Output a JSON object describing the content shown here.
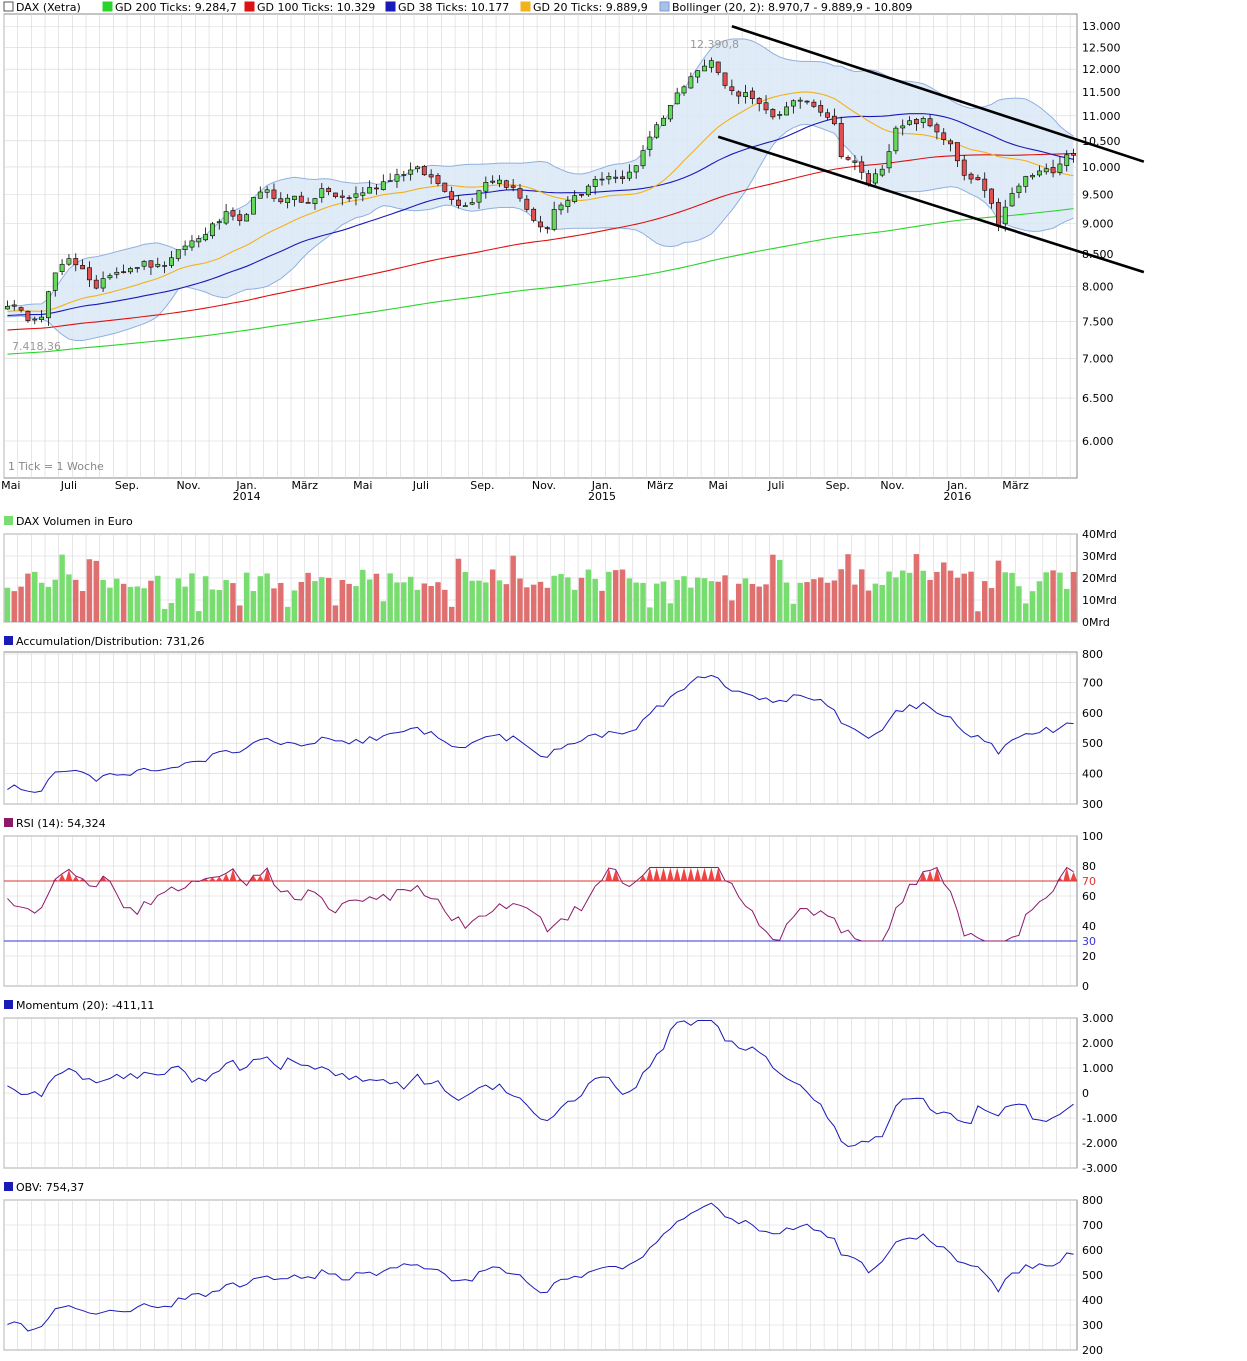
{
  "colors": {
    "grid": "#d6d6d6",
    "frame": "#888888",
    "up": "#64d85a",
    "down": "#e05050",
    "gd200": "#2bd42b",
    "gd100": "#dd1111",
    "gd38": "#1a1ab8",
    "gd20": "#f2b21a",
    "boll_fill": "#dbe7f7",
    "boll_line": "#8fb0df",
    "vol_up": "#77dd6e",
    "vol_down": "#e07070",
    "ind_line": "#1a1ab8",
    "rsi_line": "#8b1a6b",
    "rsi_fill": "#ee4444",
    "rsi70": "#dd3333",
    "rsi30": "#3333dd"
  },
  "main": {
    "legend": [
      {
        "label": "DAX (Xetra)",
        "swatch": "#ffffff",
        "border": "#555555"
      },
      {
        "label": "GD 200 Ticks: 9.284,7",
        "swatch": "#2bd42b",
        "border": "#2bd42b"
      },
      {
        "label": "GD 100 Ticks: 10.329",
        "swatch": "#dd1111",
        "border": "#dd1111"
      },
      {
        "label": "GD 38 Ticks: 10.177",
        "swatch": "#1a1ab8",
        "border": "#1a1ab8"
      },
      {
        "label": "GD 20 Ticks: 9.889,9",
        "swatch": "#f2b21a",
        "border": "#f2b21a"
      },
      {
        "label": "Bollinger (20, 2): 8.970,7 - 9.889,9 - 10.809",
        "swatch": "#a8c1e8",
        "border": "#7a9ed6"
      }
    ],
    "y_ticks": [
      {
        "v": 13000,
        "label": "13.000"
      },
      {
        "v": 12500,
        "label": "12.500"
      },
      {
        "v": 12000,
        "label": "12.000"
      },
      {
        "v": 11500,
        "label": "11.500"
      },
      {
        "v": 11000,
        "label": "11.000"
      },
      {
        "v": 10500,
        "label": "10.500"
      },
      {
        "v": 10000,
        "label": "10.000"
      },
      {
        "v": 9500,
        "label": "9.500"
      },
      {
        "v": 9000,
        "label": "9.000"
      },
      {
        "v": 8500,
        "label": "8.500"
      },
      {
        "v": 8000,
        "label": "8.000"
      },
      {
        "v": 7500,
        "label": "7.500"
      },
      {
        "v": 7000,
        "label": "7.000"
      },
      {
        "v": 6500,
        "label": "6.500"
      },
      {
        "v": 6000,
        "label": "6.000"
      }
    ],
    "x_ticks": [
      {
        "w": 1,
        "label": "Mai",
        "year": ""
      },
      {
        "w": 9.5,
        "label": "Juli",
        "year": ""
      },
      {
        "w": 18,
        "label": "Sep.",
        "year": ""
      },
      {
        "w": 27,
        "label": "Nov.",
        "year": ""
      },
      {
        "w": 35.5,
        "label": "Jan.",
        "year": "2014"
      },
      {
        "w": 44,
        "label": "März",
        "year": ""
      },
      {
        "w": 52.5,
        "label": "Mai",
        "year": ""
      },
      {
        "w": 61,
        "label": "Juli",
        "year": ""
      },
      {
        "w": 70,
        "label": "Sep.",
        "year": ""
      },
      {
        "w": 79,
        "label": "Nov.",
        "year": ""
      },
      {
        "w": 87.5,
        "label": "Jan.",
        "year": "2015"
      },
      {
        "w": 96,
        "label": "März",
        "year": ""
      },
      {
        "w": 104.5,
        "label": "Mai",
        "year": ""
      },
      {
        "w": 113,
        "label": "Juli",
        "year": ""
      },
      {
        "w": 122,
        "label": "Sep.",
        "year": ""
      },
      {
        "w": 130,
        "label": "Nov.",
        "year": ""
      },
      {
        "w": 139.5,
        "label": "Jan.",
        "year": "2016"
      },
      {
        "w": 148,
        "label": "März",
        "year": ""
      }
    ],
    "annotation_high": "12.390,8",
    "annotation_low": "7.418,36",
    "tick_note": "1 Tick = 1 Woche"
  },
  "volume": {
    "legend": "DAX Volumen in Euro",
    "swatch": "#77dd6e",
    "y_ticks": [
      {
        "v": 40,
        "label": "40Mrd"
      },
      {
        "v": 30,
        "label": "30Mrd"
      },
      {
        "v": 20,
        "label": "20Mrd"
      },
      {
        "v": 10,
        "label": "10Mrd"
      },
      {
        "v": 0,
        "label": "0Mrd"
      }
    ]
  },
  "ad": {
    "legend": "Accumulation/Distribution: 731,26",
    "swatch": "#1a1ab8",
    "y_ticks": [
      {
        "v": 800,
        "label": "800"
      },
      {
        "v": 700,
        "label": "700"
      },
      {
        "v": 600,
        "label": "600"
      },
      {
        "v": 500,
        "label": "500"
      },
      {
        "v": 400,
        "label": "400"
      },
      {
        "v": 300,
        "label": "300"
      }
    ]
  },
  "rsi": {
    "legend": "RSI (14): 54,324",
    "swatch": "#8b1a6b",
    "y_ticks": [
      {
        "v": 100,
        "label": "100"
      },
      {
        "v": 80,
        "label": "80"
      },
      {
        "v": 60,
        "label": "60"
      },
      {
        "v": 40,
        "label": "40"
      },
      {
        "v": 20,
        "label": "20"
      },
      {
        "v": 0,
        "label": "0"
      }
    ],
    "level_high": 70,
    "level_high_label": "70",
    "level_low": 30,
    "level_low_label": "30"
  },
  "momentum": {
    "legend": "Momentum (20): -411,11",
    "swatch": "#1a1ab8",
    "y_ticks": [
      {
        "v": 3000,
        "label": "3.000"
      },
      {
        "v": 2000,
        "label": "2.000"
      },
      {
        "v": 1000,
        "label": "1.000"
      },
      {
        "v": 0,
        "label": "0"
      },
      {
        "v": -1000,
        "label": "-1.000"
      },
      {
        "v": -2000,
        "label": "-2.000"
      },
      {
        "v": -3000,
        "label": "-3.000"
      }
    ]
  },
  "obv": {
    "legend": "OBV: 754,37",
    "swatch": "#1a1ab8",
    "y_ticks": [
      {
        "v": 800,
        "label": "800"
      },
      {
        "v": 700,
        "label": "700"
      },
      {
        "v": 600,
        "label": "600"
      },
      {
        "v": 500,
        "label": "500"
      },
      {
        "v": 400,
        "label": "400"
      },
      {
        "v": 300,
        "label": "300"
      },
      {
        "v": 200,
        "label": "200"
      }
    ]
  },
  "chart_data": {
    "type": "line",
    "title": "DAX (Xetra)",
    "period": "weekly",
    "main": {
      "y_scale": "log",
      "ylim": [
        5600,
        13300
      ],
      "price_anchors": [
        [
          0,
          7750
        ],
        [
          3,
          7550
        ],
        [
          5,
          7600
        ],
        [
          7,
          8200
        ],
        [
          9,
          8400
        ],
        [
          11,
          8300
        ],
        [
          13,
          7950
        ],
        [
          15,
          8200
        ],
        [
          18,
          8300
        ],
        [
          20,
          8350
        ],
        [
          22,
          8300
        ],
        [
          24,
          8400
        ],
        [
          26,
          8650
        ],
        [
          28,
          8750
        ],
        [
          30,
          8950
        ],
        [
          32,
          9150
        ],
        [
          34,
          9000
        ],
        [
          36,
          9400
        ],
        [
          38,
          9600
        ],
        [
          40,
          9350
        ],
        [
          42,
          9500
        ],
        [
          44,
          9300
        ],
        [
          46,
          9600
        ],
        [
          48,
          9450
        ],
        [
          50,
          9450
        ],
        [
          52,
          9550
        ],
        [
          54,
          9650
        ],
        [
          56,
          9800
        ],
        [
          58,
          9900
        ],
        [
          60,
          9950
        ],
        [
          62,
          9800
        ],
        [
          64,
          9600
        ],
        [
          66,
          9300
        ],
        [
          68,
          9400
        ],
        [
          70,
          9750
        ],
        [
          72,
          9750
        ],
        [
          74,
          9600
        ],
        [
          76,
          9250
        ],
        [
          78,
          8900
        ],
        [
          79,
          8950
        ],
        [
          80,
          9250
        ],
        [
          82,
          9350
        ],
        [
          84,
          9500
        ],
        [
          86,
          9750
        ],
        [
          88,
          9850
        ],
        [
          90,
          9750
        ],
        [
          92,
          10050
        ],
        [
          94,
          10600
        ],
        [
          96,
          11000
        ],
        [
          98,
          11450
        ],
        [
          100,
          11900
        ],
        [
          102,
          12050
        ],
        [
          103,
          12200
        ],
        [
          104,
          11900
        ],
        [
          106,
          11500
        ],
        [
          108,
          11450
        ],
        [
          110,
          11200
        ],
        [
          112,
          11000
        ],
        [
          114,
          11150
        ],
        [
          116,
          11350
        ],
        [
          118,
          11250
        ],
        [
          120,
          11000
        ],
        [
          121,
          10800
        ],
        [
          122,
          10250
        ],
        [
          124,
          10050
        ],
        [
          126,
          9700
        ],
        [
          128,
          10000
        ],
        [
          130,
          10700
        ],
        [
          132,
          10850
        ],
        [
          134,
          10900
        ],
        [
          136,
          10700
        ],
        [
          138,
          10400
        ],
        [
          140,
          9800
        ],
        [
          142,
          9750
        ],
        [
          144,
          9300
        ],
        [
          145,
          9000
        ],
        [
          147,
          9500
        ],
        [
          149,
          9800
        ],
        [
          151,
          9900
        ],
        [
          153,
          9950
        ],
        [
          155,
          10250
        ]
      ],
      "high": {
        "label": "12.390,8",
        "value": 12390.8
      },
      "low": {
        "label": "7.418,36",
        "value": 7418.36
      },
      "trend_lines": [
        {
          "from": [
            106,
            13000
          ],
          "to": [
            186,
            10100
          ]
        },
        {
          "from": [
            104,
            10580
          ],
          "to": [
            186,
            8220
          ]
        }
      ],
      "series": [
        {
          "name": "GD 200 Ticks",
          "last": 9284.7
        },
        {
          "name": "GD 100 Ticks",
          "last": 10329
        },
        {
          "name": "GD 38 Ticks",
          "last": 10177
        },
        {
          "name": "GD 20 Ticks",
          "last": 9889.9
        },
        {
          "name": "Bollinger (20, 2)",
          "last": [
            8970.7,
            9889.9,
            10809
          ]
        }
      ]
    },
    "volume": {
      "unit": "Mrd",
      "ylim": [
        0,
        40
      ],
      "typical": 18,
      "max": 30
    },
    "ad": {
      "ylim": [
        300,
        800
      ],
      "last": 731.26
    },
    "rsi": {
      "ylim": [
        0,
        100
      ],
      "last": 54.324,
      "levels": [
        70,
        30
      ]
    },
    "momentum": {
      "ylim": [
        -3000,
        3000
      ],
      "last": -411.11
    },
    "obv": {
      "ylim": [
        200,
        800
      ],
      "last": 754.37
    }
  }
}
